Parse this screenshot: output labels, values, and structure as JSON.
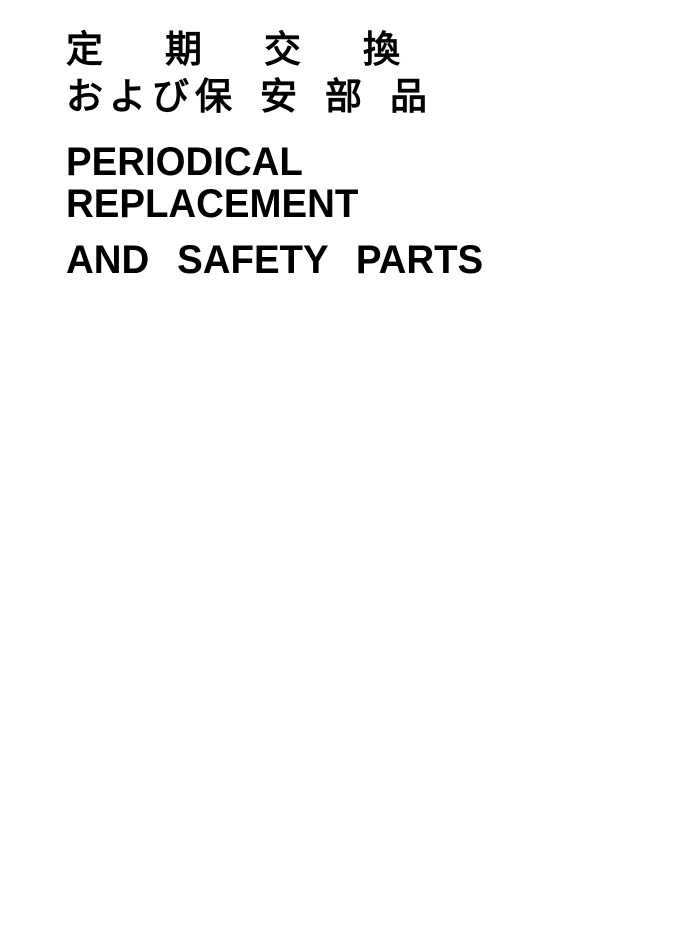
{
  "heading": {
    "jp_line_1": "定期交換",
    "jp_line_2a": "および",
    "jp_line_2b": "保安部品",
    "en_line_1": "PERIODICAL REPLACEMENT",
    "en_line_2": "AND SAFETY PARTS"
  },
  "styles": {
    "page_bg": "#ffffff",
    "text_color": "#000000",
    "jp_font_size_pt": 28,
    "en_font_size_pt": 30,
    "en_font_weight": 900,
    "jp_font_weight": 700
  }
}
